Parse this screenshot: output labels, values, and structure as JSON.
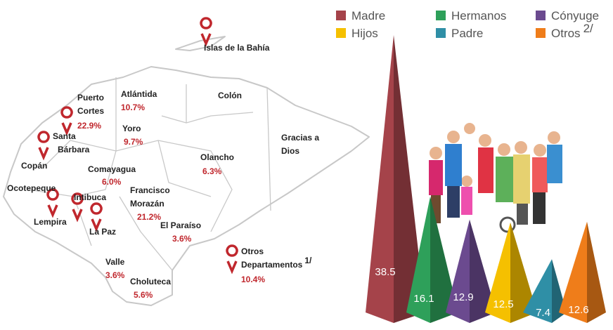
{
  "map": {
    "departments": [
      {
        "name": [
          "Islas de la Bahía"
        ]
      },
      {
        "name": [
          "Atlántida"
        ],
        "percent": "10.7%"
      },
      {
        "name": [
          "Colón"
        ]
      },
      {
        "name": [
          "Puerto",
          "Cortes"
        ],
        "percent": "22.9%"
      },
      {
        "name": [
          "Gracias a",
          "Dios"
        ]
      },
      {
        "name": [
          "Yoro"
        ],
        "percent": "9.7%"
      },
      {
        "name": [
          "Santa",
          "Bárbara"
        ]
      },
      {
        "name": [
          "Copán"
        ]
      },
      {
        "name": [
          "Olancho"
        ],
        "percent": "6.3%"
      },
      {
        "name": [
          "Comayagua"
        ],
        "percent": "6.0%"
      },
      {
        "name": [
          "Ocotepeque"
        ]
      },
      {
        "name": [
          "Intibuca"
        ]
      },
      {
        "name": [
          "Francisco",
          "Morazán"
        ],
        "percent": "21.2%"
      },
      {
        "name": [
          "Lempira"
        ]
      },
      {
        "name": [
          "La Paz"
        ]
      },
      {
        "name": [
          "El Paraíso"
        ],
        "percent": "3.6%"
      },
      {
        "name": [
          "Valle"
        ],
        "percent": "3.6%"
      },
      {
        "name": [
          "Choluteca"
        ],
        "percent": "5.6%"
      },
      {
        "name": [
          "Otros",
          "Departamentos"
        ],
        "note": "1/",
        "percent": "10.4%"
      }
    ]
  },
  "chart_data": {
    "type": "pyramid",
    "categories": [
      "Madre",
      "Hermanos",
      "Cónyuge",
      "Hijos",
      "Padre",
      "Otros"
    ],
    "category_notes": [
      null,
      null,
      null,
      null,
      null,
      "2/"
    ],
    "values": [
      38.5,
      16.1,
      12.9,
      12.5,
      7.4,
      12.6
    ],
    "colors": [
      "#a5434a",
      "#2ea05a",
      "#6b4a8f",
      "#f5c000",
      "#2f8fa6",
      "#ef7d1a"
    ]
  }
}
